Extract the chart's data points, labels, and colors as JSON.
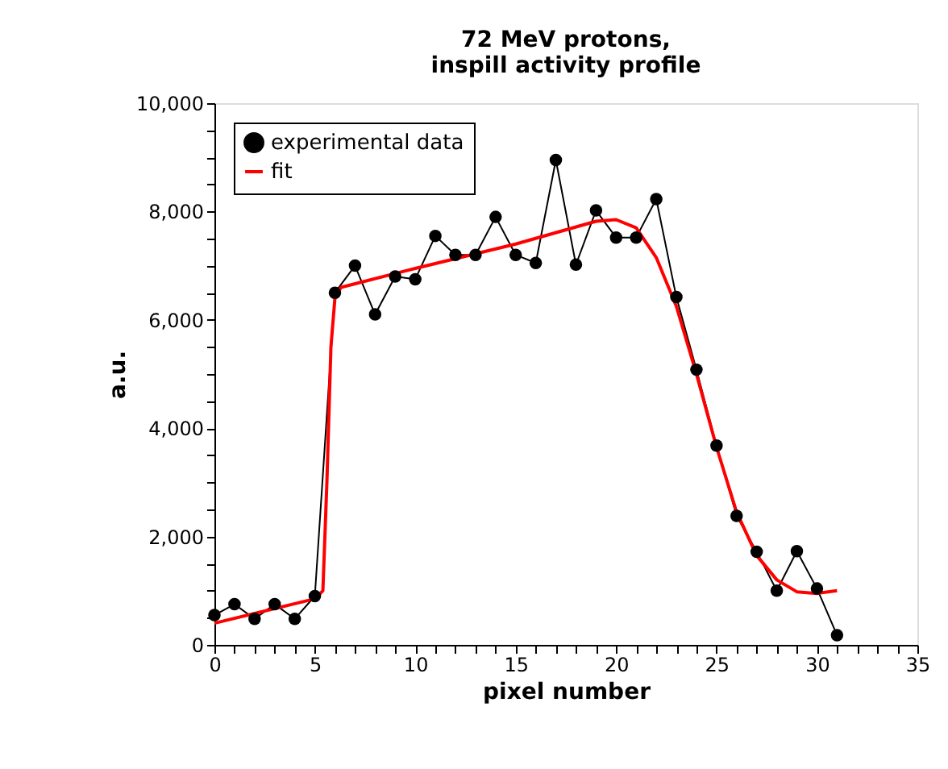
{
  "chart_data": {
    "type": "line",
    "title": [
      "72 MeV protons,",
      "inspill activity profile"
    ],
    "xlabel": "pixel number",
    "ylabel": "a.u.",
    "series": [
      {
        "name": "experimental data",
        "color": "#000000",
        "marker": "circle",
        "x": [
          0,
          1,
          2,
          3,
          4,
          5,
          6,
          7,
          8,
          9,
          10,
          11,
          12,
          13,
          14,
          15,
          16,
          17,
          18,
          19,
          20,
          21,
          22,
          23,
          24,
          25,
          26,
          27,
          28,
          29,
          30,
          31
        ],
        "values": [
          550,
          750,
          480,
          750,
          480,
          900,
          6500,
          7000,
          6100,
          6800,
          6750,
          7550,
          7200,
          7200,
          7900,
          7200,
          7050,
          8950,
          7020,
          8020,
          7520,
          7520,
          8230,
          6420,
          5080,
          3680,
          2380,
          1720,
          1000,
          1730,
          1040,
          180
        ]
      },
      {
        "name": "fit",
        "color": "#ff0000",
        "marker": "none",
        "x": [
          0,
          5,
          5.4,
          5.6,
          5.8,
          6.0,
          6.3,
          10,
          15,
          19,
          20,
          21,
          22,
          23,
          24,
          25,
          26,
          27,
          28,
          29,
          30,
          31
        ],
        "values": [
          400,
          850,
          1000,
          3000,
          5500,
          6400,
          6600,
          6950,
          7400,
          7820,
          7850,
          7700,
          7150,
          6250,
          5000,
          3650,
          2450,
          1650,
          1200,
          980,
          950,
          1000
        ]
      }
    ],
    "xlim": [
      0,
      35
    ],
    "ylim": [
      0,
      10000
    ],
    "xticks": [
      0,
      {
        "value": 1,
        "label": null
      },
      {
        "value": 2,
        "label": null
      },
      {
        "value": 3,
        "label": null
      },
      {
        "value": 4,
        "label": null
      },
      5,
      {
        "value": 6,
        "label": null
      },
      {
        "value": 7,
        "label": null
      },
      {
        "value": 8,
        "label": null
      },
      {
        "value": 9,
        "label": null
      },
      10,
      {
        "value": 11,
        "label": null
      },
      {
        "value": 12,
        "label": null
      },
      {
        "value": 13,
        "label": null
      },
      {
        "value": 14,
        "label": null
      },
      15,
      {
        "value": 16,
        "label": null
      },
      {
        "value": 17,
        "label": null
      },
      {
        "value": 18,
        "label": null
      },
      {
        "value": 19,
        "label": null
      },
      20,
      {
        "value": 21,
        "label": null
      },
      {
        "value": 22,
        "label": null
      },
      {
        "value": 23,
        "label": null
      },
      {
        "value": 24,
        "label": null
      },
      25,
      {
        "value": 26,
        "label": null
      },
      {
        "value": 27,
        "label": null
      },
      {
        "value": 28,
        "label": null
      },
      {
        "value": 29,
        "label": null
      },
      30,
      {
        "value": 31,
        "label": null
      },
      {
        "value": 32,
        "label": null
      },
      {
        "value": 33,
        "label": null
      },
      {
        "value": 34,
        "label": null
      },
      35
    ],
    "yticks": [
      0,
      {
        "value": 500,
        "label": null
      },
      {
        "value": 1000,
        "label": null
      },
      {
        "value": 1500,
        "label": null
      },
      {
        "value": 2000,
        "label": "2,000"
      },
      {
        "value": 2500,
        "label": null
      },
      {
        "value": 3000,
        "label": null
      },
      {
        "value": 3500,
        "label": null
      },
      {
        "value": 4000,
        "label": "4,000"
      },
      {
        "value": 4500,
        "label": null
      },
      {
        "value": 5000,
        "label": null
      },
      {
        "value": 5500,
        "label": null
      },
      {
        "value": 6000,
        "label": "6,000"
      },
      {
        "value": 6500,
        "label": null
      },
      {
        "value": 7000,
        "label": null
      },
      {
        "value": 7500,
        "label": null
      },
      {
        "value": 8000,
        "label": "8,000"
      },
      {
        "value": 8500,
        "label": null
      },
      {
        "value": 9000,
        "label": null
      },
      {
        "value": 9500,
        "label": null
      },
      {
        "value": 10000,
        "label": "10,000"
      }
    ],
    "grid": false,
    "legend": "top left"
  }
}
